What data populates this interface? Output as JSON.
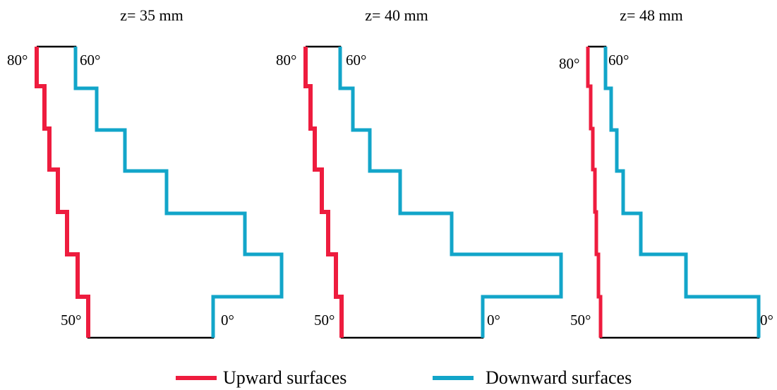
{
  "colors": {
    "upward": "#ee1c3e",
    "downward": "#12a5c9",
    "outline": "#000000"
  },
  "panels": [
    {
      "title": "z= 35 mm",
      "angle_labels": {
        "top_left": "80°",
        "top_right": "60°",
        "bottom_left": "50°",
        "bottom_right": "0°"
      }
    },
    {
      "title": "z= 40 mm",
      "angle_labels": {
        "top_left": "80°",
        "top_right": "60°",
        "bottom_left": "50°",
        "bottom_right": "0°"
      }
    },
    {
      "title": "z= 48 mm",
      "angle_labels": {
        "top_left": "80°",
        "top_right": "60°",
        "bottom_left": "50°",
        "bottom_right": "0°"
      }
    }
  ],
  "legend": [
    {
      "label": "Upward surfaces",
      "color_key": "upward"
    },
    {
      "label": "Downward surfaces",
      "color_key": "downward"
    }
  ]
}
